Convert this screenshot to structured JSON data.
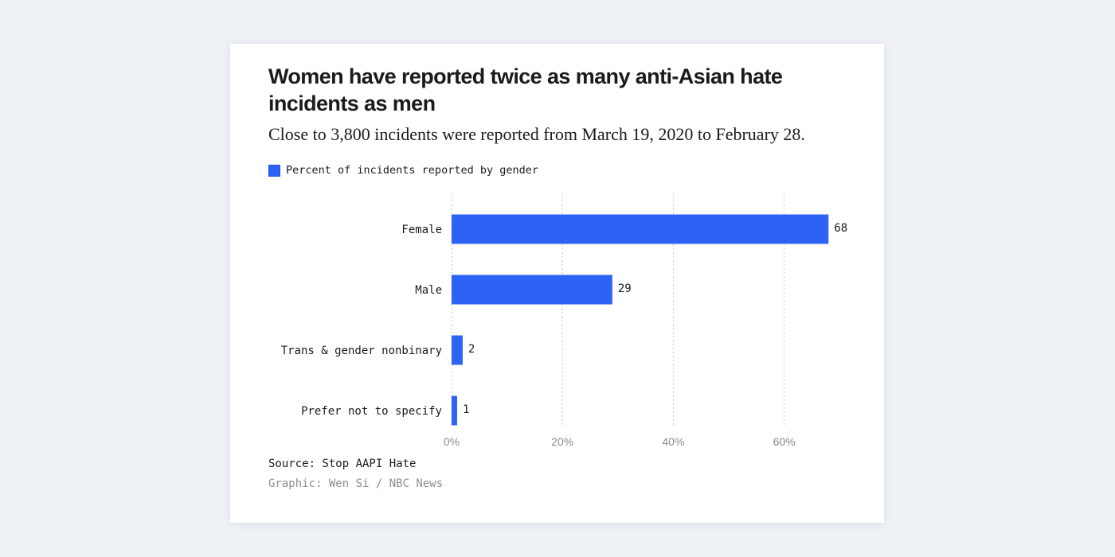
{
  "chart_data": {
    "type": "bar",
    "orientation": "horizontal",
    "title": "Women have reported twice as many anti-Asian hate incidents as men",
    "subtitle": "Close to 3,800 incidents were reported from March 19, 2020 to February 28.",
    "legend": [
      "Percent of incidents reported by gender"
    ],
    "categories": [
      "Female",
      "Male",
      "Trans & gender nonbinary",
      "Prefer not to specify"
    ],
    "values": [
      68,
      29,
      2,
      1
    ],
    "value_labels": [
      "68",
      "29",
      "2",
      "1"
    ],
    "xlim": [
      0,
      72
    ],
    "xticks": [
      0,
      20,
      40,
      60
    ],
    "xtick_labels": [
      "0%",
      "20%",
      "40%",
      "60%"
    ],
    "grid": true,
    "xlabel": "",
    "ylabel": "",
    "bar_color": "#2d63f5",
    "source": "Source: Stop AAPI Hate",
    "credit": "Graphic: Wen Si / NBC News"
  },
  "colors": {
    "background": "#eef2f7",
    "card": "#ffffff",
    "bar": "#2d63f5",
    "grid": "#c9c9c9",
    "text": "#1b1b1b",
    "muted": "#8e8e8e"
  }
}
